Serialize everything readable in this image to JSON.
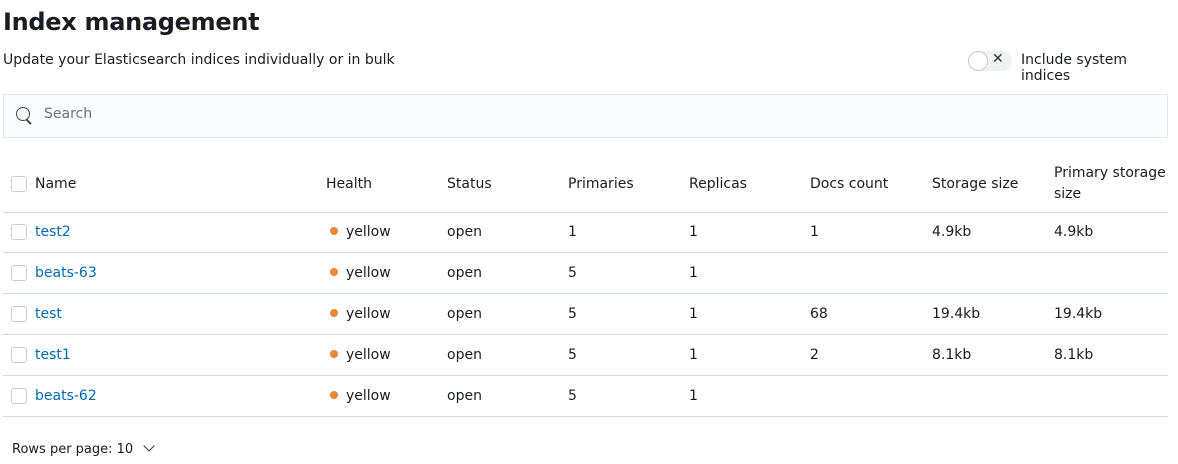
{
  "page": {
    "title": "Index management",
    "subtitle": "Update your Elasticsearch indices individually or in bulk"
  },
  "toggle": {
    "label": "Include system indices",
    "checked": false,
    "icon": "cross-icon",
    "glyph": "✕"
  },
  "search": {
    "placeholder": "Search",
    "value": ""
  },
  "table": {
    "columns": [
      "Name",
      "Health",
      "Status",
      "Primaries",
      "Replicas",
      "Docs count",
      "Storage size",
      "Primary storage size"
    ],
    "rows": [
      {
        "name": "test2",
        "health": "yellow",
        "status": "open",
        "primaries": "1",
        "replicas": "1",
        "docs": "1",
        "storage": "4.9kb",
        "primary_storage": "4.9kb"
      },
      {
        "name": "beats-63",
        "health": "yellow",
        "status": "open",
        "primaries": "5",
        "replicas": "1",
        "docs": "",
        "storage": "",
        "primary_storage": ""
      },
      {
        "name": "test",
        "health": "yellow",
        "status": "open",
        "primaries": "5",
        "replicas": "1",
        "docs": "68",
        "storage": "19.4kb",
        "primary_storage": "19.4kb"
      },
      {
        "name": "test1",
        "health": "yellow",
        "status": "open",
        "primaries": "5",
        "replicas": "1",
        "docs": "2",
        "storage": "8.1kb",
        "primary_storage": "8.1kb"
      },
      {
        "name": "beats-62",
        "health": "yellow",
        "status": "open",
        "primaries": "5",
        "replicas": "1",
        "docs": "",
        "storage": "",
        "primary_storage": ""
      }
    ]
  },
  "colors": {
    "health_yellow": "#e7883a",
    "link": "#006bb4"
  },
  "pagination": {
    "rows_per_page": "Rows per page: 10"
  }
}
